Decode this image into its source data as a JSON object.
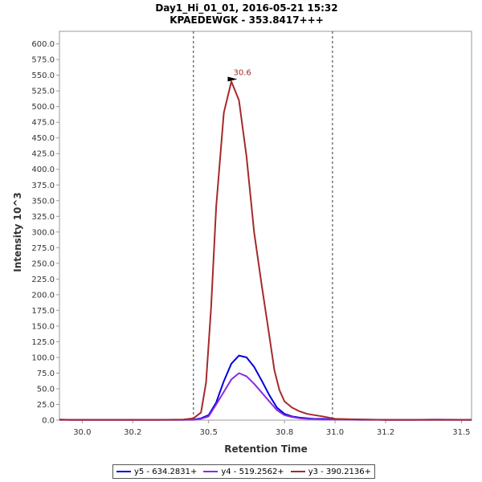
{
  "chart_data": {
    "type": "line",
    "title": "Day1_Hi_01_01, 2016-05-21 15:32",
    "subtitle": "KPAEDEWGK - 353.8417+++",
    "xlabel": "Retention Time",
    "ylabel": "Intensity 10^3",
    "xlim": [
      29.91,
      31.54
    ],
    "ylim": [
      0,
      620
    ],
    "xticks": [
      30.0,
      30.2,
      30.5,
      30.8,
      31.0,
      31.2,
      31.5
    ],
    "xtick_labels": [
      "30.0",
      "30.2",
      "30.5",
      "30.8",
      "31.0",
      "31.2",
      "31.5"
    ],
    "yticks": [
      0,
      25,
      50,
      75,
      100,
      125,
      150,
      175,
      200,
      225,
      250,
      275,
      300,
      325,
      350,
      375,
      400,
      425,
      450,
      475,
      500,
      525,
      550,
      575,
      600
    ],
    "ytick_labels": [
      "0.0",
      "25.0",
      "50.0",
      "75.0",
      "100.0",
      "125.0",
      "150.0",
      "175.0",
      "200.0",
      "225.0",
      "250.0",
      "275.0",
      "300.0",
      "325.0",
      "350.0",
      "375.0",
      "400.0",
      "425.0",
      "450.0",
      "475.0",
      "500.0",
      "525.0",
      "550.0",
      "575.0",
      "600.0"
    ],
    "vlines": [
      30.44,
      30.99
    ],
    "peak_annotation": {
      "x": 30.62,
      "y": 540,
      "label": "30.6",
      "color": "#a52a2a"
    },
    "grid": false,
    "legend_position": "bottom",
    "series": [
      {
        "name": "y5 - 634.2831+",
        "color": "#0000dd",
        "x": [
          29.91,
          29.95,
          30.0,
          30.1,
          30.2,
          30.3,
          30.4,
          30.44,
          30.47,
          30.5,
          30.53,
          30.56,
          30.59,
          30.62,
          30.65,
          30.68,
          30.71,
          30.74,
          30.77,
          30.8,
          30.83,
          30.86,
          30.89,
          30.92,
          30.95,
          30.98,
          31.0,
          31.1,
          31.2,
          31.3,
          31.4,
          31.54
        ],
        "y": [
          1,
          0.5,
          0.5,
          0.5,
          0.5,
          0.5,
          0.5,
          1,
          3,
          8,
          28,
          62,
          90,
          103,
          100,
          85,
          63,
          40,
          20,
          10,
          6,
          4,
          3,
          2,
          2,
          1.5,
          1.5,
          1,
          0.5,
          0.5,
          0.5,
          0.5
        ]
      },
      {
        "name": "y4 - 519.2562+",
        "color": "#8a2be2",
        "x": [
          29.91,
          30.0,
          30.1,
          30.2,
          30.3,
          30.4,
          30.44,
          30.47,
          30.5,
          30.53,
          30.56,
          30.59,
          30.62,
          30.65,
          30.68,
          30.71,
          30.74,
          30.77,
          30.8,
          30.83,
          30.86,
          30.89,
          30.92,
          30.95,
          30.98,
          31.0,
          31.1,
          31.2,
          31.3,
          31.4,
          31.54
        ],
        "y": [
          0.5,
          0.5,
          0.5,
          0.5,
          0.5,
          0.5,
          0.5,
          2,
          6,
          25,
          45,
          65,
          75,
          70,
          58,
          44,
          30,
          16,
          8,
          5,
          3,
          2,
          1.5,
          1,
          1,
          1,
          0.5,
          0.5,
          0.5,
          1,
          0.5
        ]
      },
      {
        "name": "y3 - 390.2136+",
        "color": "#a52a2a",
        "x": [
          29.91,
          30.0,
          30.1,
          30.2,
          30.3,
          30.4,
          30.44,
          30.47,
          30.49,
          30.51,
          30.53,
          30.56,
          30.59,
          30.62,
          30.65,
          30.68,
          30.71,
          30.74,
          30.76,
          30.78,
          30.8,
          30.83,
          30.86,
          30.89,
          30.92,
          30.95,
          30.99,
          31.0,
          31.1,
          31.2,
          31.3,
          31.4,
          31.54
        ],
        "y": [
          0.5,
          0.5,
          0.5,
          0.5,
          0.5,
          1,
          3,
          12,
          60,
          180,
          340,
          490,
          540,
          510,
          420,
          300,
          215,
          135,
          80,
          48,
          30,
          20,
          14,
          10,
          8,
          6,
          3,
          2,
          1,
          0.5,
          0.5,
          0.5,
          0.5
        ]
      }
    ]
  }
}
